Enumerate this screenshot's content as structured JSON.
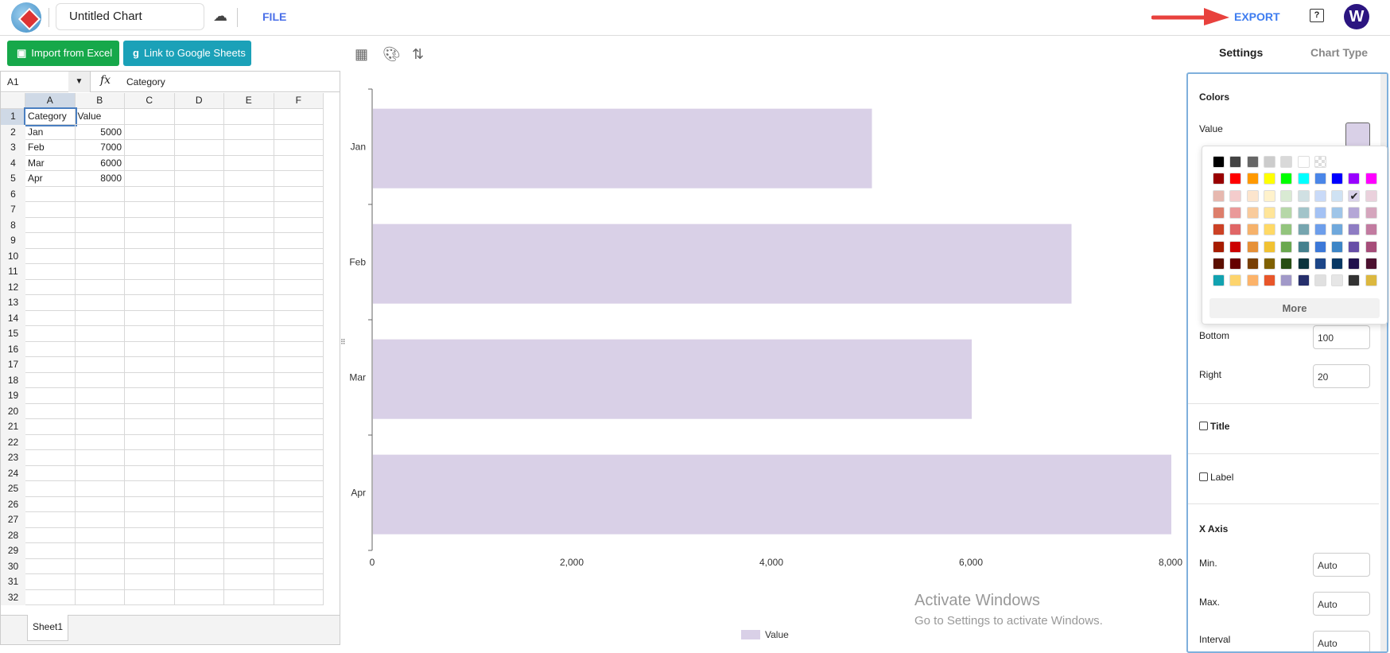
{
  "header": {
    "title": "Untitled Chart",
    "file_label": "FILE",
    "export_label": "EXPORT",
    "help_icon": "?",
    "avatar_letter": "W"
  },
  "toolbar": {
    "import_excel": "Import from Excel",
    "link_sheets": "Link to Google Sheets"
  },
  "spreadsheet": {
    "name_box": "A1",
    "fx_label": "fx",
    "formula": "Category",
    "columns": [
      "A",
      "B",
      "C",
      "D",
      "E",
      "F"
    ],
    "rows": [
      [
        "Category",
        "Value"
      ],
      [
        "Jan",
        "5000"
      ],
      [
        "Feb",
        "7000"
      ],
      [
        "Mar",
        "6000"
      ],
      [
        "Apr",
        "8000"
      ]
    ],
    "row_count": 32,
    "sheet_tab": "Sheet1"
  },
  "right_tabs": {
    "settings": "Settings",
    "chart_type": "Chart Type"
  },
  "panel": {
    "colors_title": "Colors",
    "value_label": "Value",
    "value_color": "#d9d0e7",
    "bottom_label": "Bottom",
    "bottom_value": "100",
    "right_label": "Right",
    "right_value": "20",
    "title_label": "Title",
    "label_label": "Label",
    "x_axis_title": "X Axis",
    "min_label": "Min.",
    "min_value": "Auto",
    "max_label": "Max.",
    "max_value": "Auto",
    "interval_label": "Interval",
    "interval_value": "Auto"
  },
  "palette": {
    "rows": [
      [
        "#000000",
        "#434343",
        "#666666",
        "#cccccc",
        "#d9d9d9",
        "#ffffff",
        "transparent"
      ],
      [
        "#980000",
        "#ff0000",
        "#ff9900",
        "#ffff00",
        "#00ff00",
        "#00ffff",
        "#4a86e8",
        "#0000ff",
        "#9900ff",
        "#ff00ff"
      ],
      [
        "#e6b8af",
        "#f4cccc",
        "#fce5cd",
        "#fff2cc",
        "#d9ead3",
        "#d0e0e3",
        "#c9daf8",
        "#cfe2f3",
        "#d9d2e9",
        "#ead1dc"
      ],
      [
        "#dd7e6b",
        "#ea9999",
        "#f9cb9c",
        "#ffe599",
        "#b6d7a8",
        "#a2c4c9",
        "#a4c2f4",
        "#9fc5e8",
        "#b4a7d6",
        "#d5a6bd"
      ],
      [
        "#cc4125",
        "#e06666",
        "#f6b26b",
        "#ffd966",
        "#93c47d",
        "#76a5af",
        "#6d9eeb",
        "#6fa8dc",
        "#8e7cc3",
        "#c27ba0"
      ],
      [
        "#a61c00",
        "#cc0000",
        "#e69138",
        "#f1c232",
        "#6aa84f",
        "#45818e",
        "#3c78d8",
        "#3d85c6",
        "#674ea7",
        "#a64d79"
      ],
      [
        "#5b0f00",
        "#660000",
        "#783f04",
        "#7f6000",
        "#274e13",
        "#0c343d",
        "#1c4587",
        "#073763",
        "#20124d",
        "#4c1130"
      ],
      [
        "#12a2b0",
        "#fdd46d",
        "#fcb36a",
        "#e8562a",
        "#a199c8",
        "#262f6b",
        "#e0e0e0",
        "#e6e6e6",
        "#333333",
        "#dcb83f"
      ]
    ],
    "selected": "#d9d2e9",
    "more_label": "More"
  },
  "chart_data": {
    "type": "bar",
    "orientation": "horizontal",
    "categories": [
      "Jan",
      "Feb",
      "Mar",
      "Apr"
    ],
    "series": [
      {
        "name": "Value",
        "values": [
          5000,
          7000,
          6000,
          8000
        ],
        "color": "#d9d0e7"
      }
    ],
    "xlim": [
      0,
      8000
    ],
    "xticks": [
      "0",
      "2,000",
      "4,000",
      "6,000",
      "8,000"
    ],
    "grid": false,
    "legend": "bottom"
  },
  "watermark": {
    "line1": "Activate Windows",
    "line2": "Go to Settings to activate Windows."
  }
}
